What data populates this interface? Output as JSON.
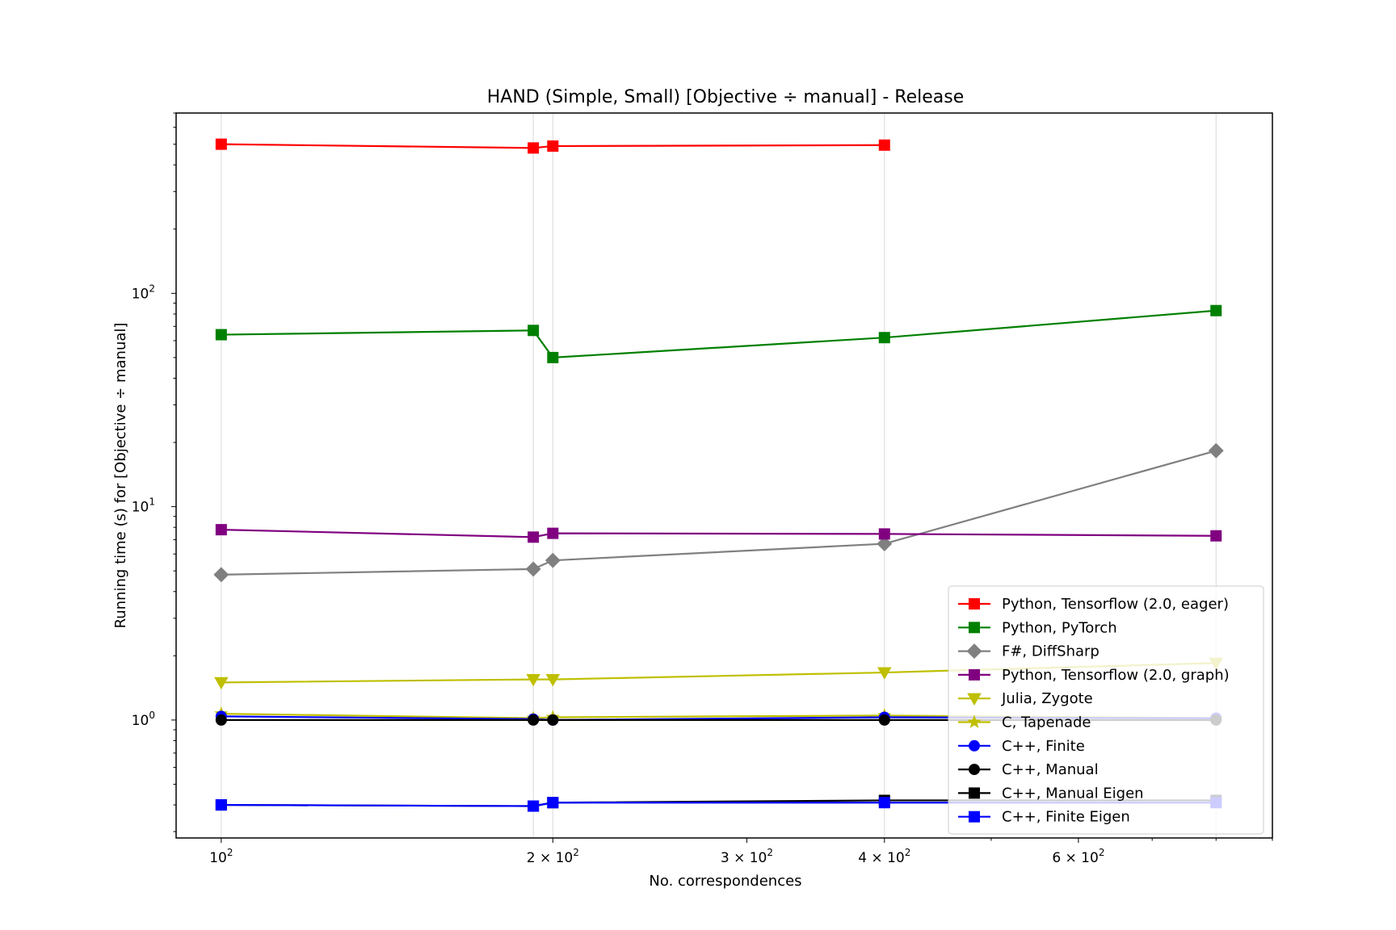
{
  "chart_data": {
    "type": "line",
    "title": "HAND (Simple, Small) [Objective ÷ manual] - Release",
    "xlabel": "No. correspondences",
    "ylabel": "Running time (s) for [Objective ÷ manual]",
    "xscale": "log",
    "yscale": "log",
    "xlim": [
      91,
      900
    ],
    "ylim": [
      0.28,
      700
    ],
    "grid": "x-major-and-minor-at-data-points",
    "legend_placement": "lower-right",
    "x_ticks": [
      {
        "value": 100,
        "base": "10",
        "exp": "2"
      },
      {
        "value": 200,
        "base": "2 × 10",
        "exp": "2"
      },
      {
        "value": 300,
        "base": "3 × 10",
        "exp": "2"
      },
      {
        "value": 400,
        "base": "4 × 10",
        "exp": "2"
      },
      {
        "value": 600,
        "base": "6 × 10",
        "exp": "2"
      }
    ],
    "y_ticks": [
      {
        "value": 1,
        "base": "10",
        "exp": "0"
      },
      {
        "value": 10,
        "base": "10",
        "exp": "1"
      },
      {
        "value": 100,
        "base": "10",
        "exp": "2"
      }
    ],
    "series": [
      {
        "name": "Python, Tensorflow (2.0, eager)",
        "color": "#ff0000",
        "marker": "square",
        "x": [
          100,
          192,
          200,
          400
        ],
        "values": [
          500,
          480,
          490,
          495
        ]
      },
      {
        "name": "Python, PyTorch",
        "color": "#008000",
        "marker": "square",
        "x": [
          100,
          192,
          200,
          400,
          800
        ],
        "values": [
          64,
          67,
          50,
          62,
          83
        ]
      },
      {
        "name": "F#, DiffSharp",
        "color": "#808080",
        "marker": "diamond",
        "x": [
          100,
          192,
          200,
          400,
          800
        ],
        "values": [
          4.8,
          5.1,
          5.6,
          6.7,
          18.3
        ]
      },
      {
        "name": "Python, Tensorflow (2.0, graph)",
        "color": "#800080",
        "marker": "square",
        "x": [
          100,
          192,
          200,
          400,
          800
        ],
        "values": [
          7.8,
          7.2,
          7.5,
          7.45,
          7.3
        ]
      },
      {
        "name": "Julia, Zygote",
        "color": "#bfbf00",
        "marker": "triangle-down",
        "x": [
          100,
          192,
          200,
          400,
          800
        ],
        "values": [
          1.5,
          1.55,
          1.55,
          1.67,
          1.85
        ]
      },
      {
        "name": "C, Tapenade",
        "color": "#bfbf00",
        "marker": "star",
        "x": [
          100,
          192,
          200,
          400,
          800
        ],
        "values": [
          1.07,
          1.02,
          1.03,
          1.05,
          1.02
        ]
      },
      {
        "name": "C++, Finite",
        "color": "#0000ff",
        "marker": "circle",
        "x": [
          100,
          192,
          200,
          400,
          800
        ],
        "values": [
          1.04,
          1.01,
          1.0,
          1.03,
          1.02
        ]
      },
      {
        "name": "C++, Manual",
        "color": "#000000",
        "marker": "circle",
        "x": [
          100,
          192,
          200,
          400,
          800
        ],
        "values": [
          1.0,
          1.0,
          1.0,
          1.0,
          1.0
        ]
      },
      {
        "name": "C++, Manual Eigen",
        "color": "#000000",
        "marker": "square",
        "x": [
          100,
          192,
          200,
          400,
          800
        ],
        "values": [
          0.4,
          0.395,
          0.41,
          0.42,
          0.42
        ]
      },
      {
        "name": "C++, Finite Eigen",
        "color": "#0000ff",
        "marker": "square",
        "x": [
          100,
          192,
          200,
          400,
          800
        ],
        "values": [
          0.4,
          0.395,
          0.41,
          0.41,
          0.41
        ]
      }
    ]
  }
}
